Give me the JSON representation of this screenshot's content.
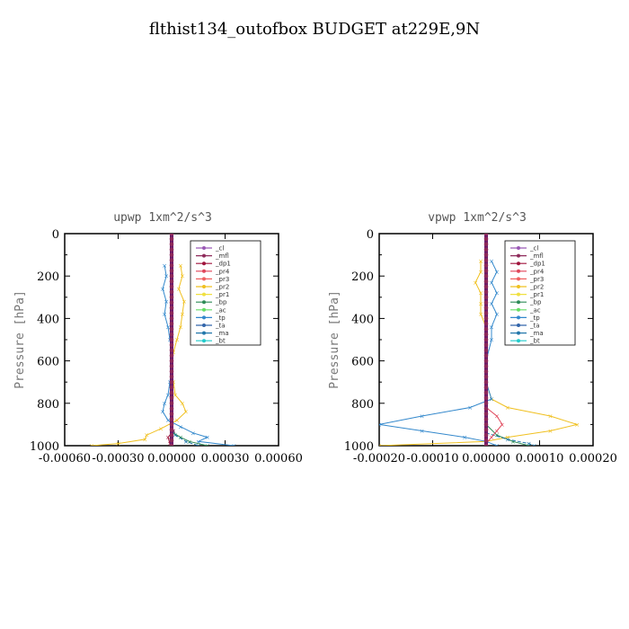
{
  "figure_title": "flthist134_outofbox  BUDGET at229E,9N",
  "legend_names": [
    "_cl",
    "_mfl",
    "_dp1",
    "_pr4",
    "_pr3",
    "_pr2",
    "_pr1",
    "_bp",
    "_ac",
    "_tp",
    "_ta",
    "_ma",
    "_bt"
  ],
  "colors": {
    "_cl": "#9b59b6",
    "_mfl": "#8e2a5a",
    "_dp1": "#a0143c",
    "_pr4": "#e0465a",
    "_pr3": "#f06060",
    "_pr2": "#f0c020",
    "_pr1": "#f0e040",
    "_bp": "#2e8b57",
    "_ac": "#66dd66",
    "_tp": "#3388cc",
    "_ta": "#3366aa",
    "_ma": "#2277aa",
    "_bt": "#22cccc"
  },
  "chart_data": [
    {
      "type": "line",
      "title": "upwp   1xm^2/s^3",
      "ylabel": "Pressure [hPa]",
      "xlim": [
        -0.0006,
        0.0006
      ],
      "ylim": [
        1000,
        0
      ],
      "xticks": [
        "-0.00060",
        "-0.00030",
        "0.00000",
        "0.00030",
        "0.00060"
      ],
      "xtick_values": [
        -0.0006,
        -0.0003,
        0.0,
        0.0003,
        0.0006
      ],
      "yticks": [
        "0",
        "200",
        "400",
        "600",
        "800",
        "1000"
      ],
      "ytick_values": [
        0,
        200,
        400,
        600,
        800,
        1000
      ],
      "legend_position": "top-right",
      "series": [
        {
          "name": "_pr2",
          "pressure": [
            150,
            200,
            260,
            320,
            380,
            440,
            500,
            560,
            640,
            700,
            760,
            800,
            840,
            880,
            920,
            950,
            970,
            990,
            1000
          ],
          "values": [
            5e-05,
            6e-05,
            4e-05,
            7e-05,
            6e-05,
            5e-05,
            3e-05,
            1e-05,
            0.0,
            1e-05,
            2e-05,
            6e-05,
            8e-05,
            3e-05,
            -6e-05,
            -0.00014,
            -0.00015,
            -0.0003,
            -0.00045
          ]
        },
        {
          "name": "_tp",
          "pressure": [
            150,
            200,
            260,
            320,
            380,
            440,
            500,
            560,
            640,
            700,
            760,
            800,
            840,
            880,
            910,
            940,
            960,
            980,
            1000
          ],
          "values": [
            -4e-05,
            -3e-05,
            -5e-05,
            -3e-05,
            -4e-05,
            -2e-05,
            -1e-05,
            0.0,
            0.0,
            -1e-05,
            -2e-05,
            -4e-05,
            -5e-05,
            -2e-05,
            5e-05,
            0.00012,
            0.0002,
            0.00015,
            0.00035
          ]
        },
        {
          "name": "_bp",
          "pressure": [
            900,
            940,
            960,
            980,
            1000
          ],
          "values": [
            0.0,
            1e-05,
            5e-05,
            0.0001,
            0.0002
          ]
        },
        {
          "name": "_ma",
          "pressure": [
            900,
            950,
            980,
            1000
          ],
          "values": [
            0.0,
            2e-05,
            8e-05,
            0.00015
          ]
        },
        {
          "name": "_dp1",
          "pressure": [
            900,
            930,
            960,
            990,
            1000
          ],
          "values": [
            0.0,
            1e-05,
            -2e-05,
            -1e-05,
            0.0
          ]
        }
      ]
    },
    {
      "type": "line",
      "title": "vpwp   1xm^2/s^3",
      "ylabel": "Pressure [hPa]",
      "xlim": [
        -0.0002,
        0.0002
      ],
      "ylim": [
        1000,
        0
      ],
      "xticks": [
        "-0.00020",
        "-0.00010",
        "0.00000",
        "0.00010",
        "0.00020"
      ],
      "xtick_values": [
        -0.0002,
        -0.0001,
        0.0,
        0.0001,
        0.0002
      ],
      "yticks": [
        "0",
        "200",
        "400",
        "600",
        "800",
        "1000"
      ],
      "ytick_values": [
        0,
        200,
        400,
        600,
        800,
        1000
      ],
      "legend_position": "top-right",
      "series": [
        {
          "name": "_pr2",
          "pressure": [
            130,
            180,
            230,
            280,
            330,
            380,
            440,
            500,
            600,
            700,
            780,
            820,
            860,
            900,
            930,
            960,
            980,
            1000
          ],
          "values": [
            -1e-05,
            -1e-05,
            -2e-05,
            -1e-05,
            -1e-05,
            -1e-05,
            0.0,
            0.0,
            0.0,
            0.0,
            1e-05,
            4e-05,
            0.00012,
            0.00017,
            0.00012,
            4e-05,
            0.0,
            -0.0002
          ]
        },
        {
          "name": "_tp",
          "pressure": [
            130,
            180,
            230,
            280,
            330,
            380,
            440,
            500,
            600,
            700,
            780,
            820,
            860,
            900,
            930,
            960,
            980,
            1000
          ],
          "values": [
            1e-05,
            2e-05,
            1e-05,
            2e-05,
            1e-05,
            2e-05,
            1e-05,
            1e-05,
            0.0,
            0.0,
            1e-05,
            -3e-05,
            -0.00012,
            -0.0002,
            -0.00012,
            -4e-05,
            0.0,
            2e-05
          ]
        },
        {
          "name": "_bp",
          "pressure": [
            900,
            950,
            980,
            1000
          ],
          "values": [
            0.0,
            2e-05,
            5e-05,
            8e-05
          ]
        },
        {
          "name": "_ma",
          "pressure": [
            940,
            970,
            990,
            1000
          ],
          "values": [
            0.0,
            4e-05,
            8e-05,
            9e-05
          ]
        },
        {
          "name": "_pr4",
          "pressure": [
            820,
            860,
            900,
            930,
            960,
            990
          ],
          "values": [
            0.0,
            2e-05,
            3e-05,
            2e-05,
            1e-05,
            0.0
          ]
        }
      ]
    }
  ]
}
